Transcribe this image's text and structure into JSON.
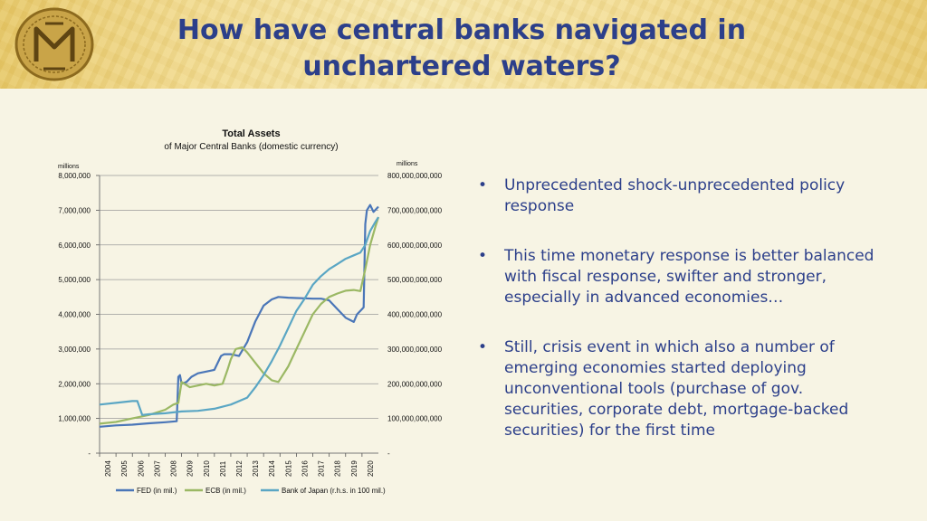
{
  "slide": {
    "title": "How have central banks navigated in unchartered waters?",
    "bullets": [
      "Unprecedented shock-unprecedented policy response",
      "This time monetary response is better balanced with fiscal response, swifter and stronger, especially in advanced economies…",
      "Still, crisis event in which also a number of emerging economies started deploying unconventional tools (purchase of gov. securities, corporate debt, mortgage-backed securities) for the first time"
    ],
    "bullet_symbol": "•"
  },
  "chart_data": {
    "type": "line",
    "title": "Total Assets",
    "subtitle": "of Major Central Banks (domestic currency)",
    "ylabel_left": "millions",
    "ylabel_right": "millions",
    "ylim_left": [
      0,
      8000000
    ],
    "ylim_right": [
      0,
      800000000000
    ],
    "left_ticks": [
      "-",
      "1,000,000",
      "2,000,000",
      "3,000,000",
      "4,000,000",
      "5,000,000",
      "6,000,000",
      "7,000,000",
      "8,000,000"
    ],
    "right_ticks": [
      "-",
      "100,000,000,000",
      "200,000,000,000",
      "300,000,000,000",
      "400,000,000,000",
      "500,000,000,000",
      "600,000,000,000",
      "700,000,000,000",
      "800,000,000,000"
    ],
    "x_ticks": [
      "2004",
      "2005",
      "2006",
      "2007",
      "2008",
      "2009",
      "2010",
      "2011",
      "2012",
      "2013",
      "2014",
      "2015",
      "2016",
      "2017",
      "2018",
      "2019",
      "2020"
    ],
    "xlim": [
      2004.0,
      2021.0
    ],
    "grid": true,
    "legend_position": "bottom",
    "series": [
      {
        "name": "FED (in mil.)",
        "axis": "left",
        "color": "#4a76b8",
        "x": [
          2004.0,
          2005.0,
          2006.0,
          2007.0,
          2008.0,
          2008.7,
          2008.8,
          2008.9,
          2009.0,
          2009.3,
          2009.6,
          2010.0,
          2010.5,
          2011.0,
          2011.4,
          2011.6,
          2012.0,
          2012.5,
          2013.0,
          2013.5,
          2014.0,
          2014.5,
          2014.9,
          2015.5,
          2016.0,
          2016.5,
          2017.0,
          2017.5,
          2018.0,
          2018.5,
          2019.0,
          2019.5,
          2019.7,
          2020.0,
          2020.1,
          2020.2,
          2020.3,
          2020.5,
          2020.7,
          2021.0
        ],
        "values": [
          760000,
          800000,
          820000,
          860000,
          890000,
          920000,
          2200000,
          2250000,
          2000000,
          2050000,
          2200000,
          2300000,
          2350000,
          2400000,
          2800000,
          2850000,
          2850000,
          2800000,
          3200000,
          3800000,
          4250000,
          4430000,
          4500000,
          4480000,
          4470000,
          4460000,
          4450000,
          4450000,
          4400000,
          4150000,
          3900000,
          3780000,
          4000000,
          4150000,
          4200000,
          6600000,
          7000000,
          7150000,
          6950000,
          7100000
        ]
      },
      {
        "name": "ECB (in mil.)",
        "axis": "left",
        "color": "#9bb864",
        "x": [
          2004.0,
          2005.0,
          2006.0,
          2007.0,
          2008.0,
          2008.5,
          2008.8,
          2009.0,
          2009.5,
          2010.0,
          2010.5,
          2011.0,
          2011.5,
          2011.8,
          2012.0,
          2012.3,
          2012.7,
          2013.0,
          2013.5,
          2014.0,
          2014.5,
          2014.9,
          2015.5,
          2016.0,
          2016.5,
          2017.0,
          2017.5,
          2018.0,
          2018.5,
          2019.0,
          2019.5,
          2019.9,
          2020.2,
          2020.5,
          2020.8,
          2021.0
        ],
        "values": [
          850000,
          900000,
          1000000,
          1100000,
          1250000,
          1400000,
          1450000,
          2050000,
          1900000,
          1950000,
          2000000,
          1950000,
          2000000,
          2400000,
          2700000,
          3000000,
          3050000,
          2900000,
          2600000,
          2300000,
          2100000,
          2050000,
          2500000,
          3000000,
          3500000,
          4000000,
          4300000,
          4500000,
          4600000,
          4680000,
          4700000,
          4670000,
          5300000,
          6000000,
          6500000,
          6800000
        ]
      },
      {
        "name": "Bank of Japan (r.h.s. in 100 mil.)",
        "axis": "right",
        "color": "#5aa6c4",
        "x": [
          2004.0,
          2005.0,
          2006.0,
          2006.3,
          2006.6,
          2007.0,
          2008.0,
          2009.0,
          2010.0,
          2011.0,
          2012.0,
          2013.0,
          2013.5,
          2014.0,
          2014.5,
          2015.0,
          2015.5,
          2016.0,
          2016.5,
          2017.0,
          2017.5,
          2018.0,
          2018.5,
          2019.0,
          2019.5,
          2019.9,
          2020.2,
          2020.5,
          2020.8,
          2021.0
        ],
        "values": [
          140000000000,
          145000000000,
          150000000000,
          150000000000,
          110000000000,
          112000000000,
          115000000000,
          120000000000,
          122000000000,
          128000000000,
          140000000000,
          160000000000,
          190000000000,
          225000000000,
          265000000000,
          310000000000,
          360000000000,
          410000000000,
          445000000000,
          485000000000,
          510000000000,
          530000000000,
          545000000000,
          560000000000,
          570000000000,
          578000000000,
          600000000000,
          640000000000,
          665000000000,
          680000000000
        ]
      }
    ]
  }
}
